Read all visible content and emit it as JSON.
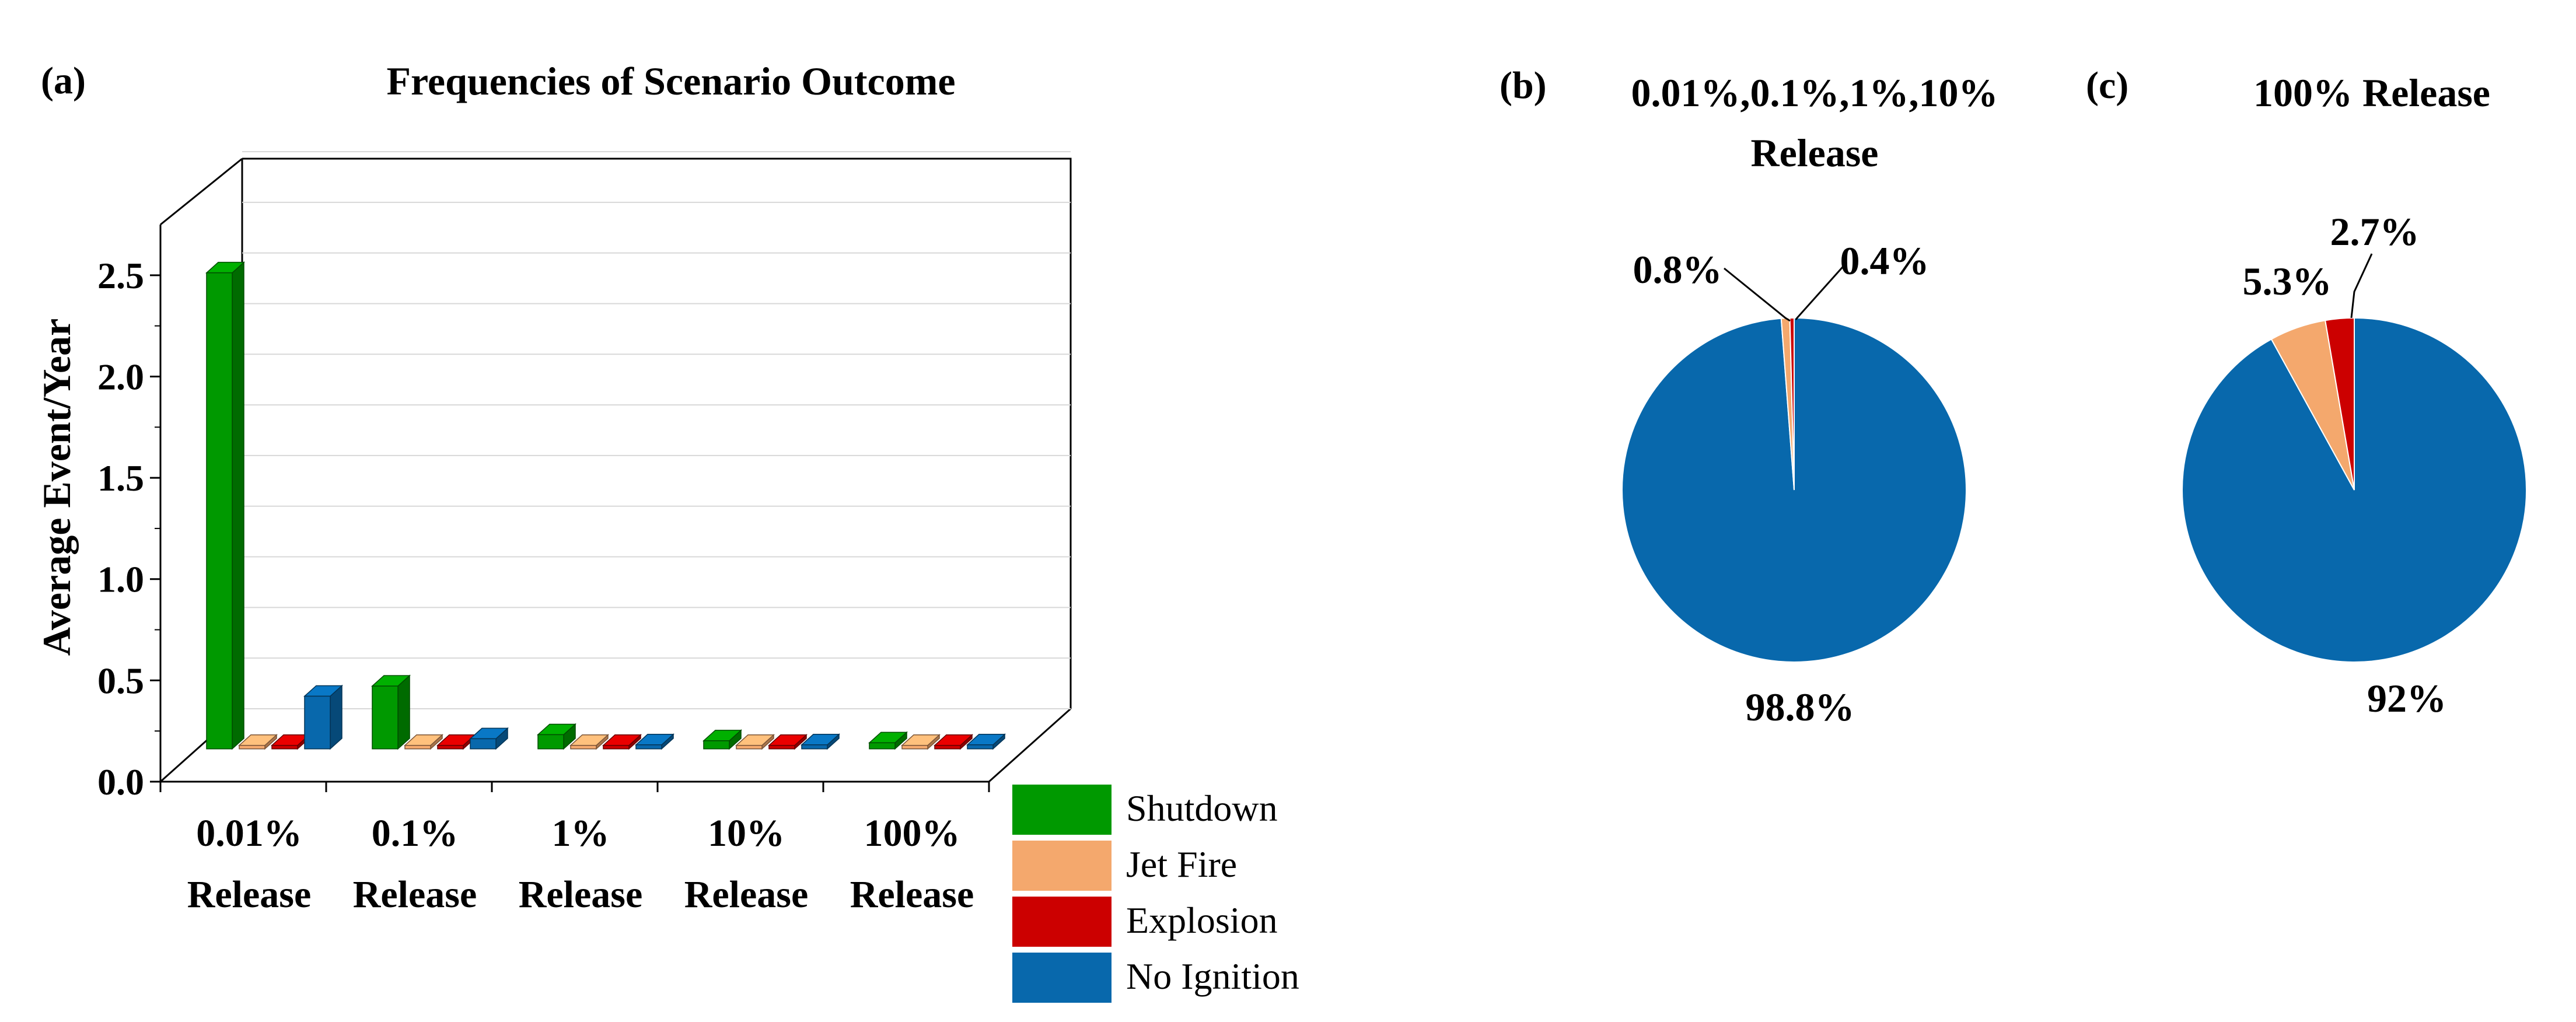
{
  "chart_data": [
    {
      "type": "bar",
      "panel_label": "(a)",
      "title": "Frequencies of Scenario Outcome",
      "xlabel": "",
      "ylabel": "Average Event/Year",
      "ylim": [
        0,
        2.75
      ],
      "yticks": [
        "0.0",
        "0.5",
        "1.0",
        "1.5",
        "2.0",
        "2.5"
      ],
      "categories": [
        {
          "line1": "0.01%",
          "line2": "Release"
        },
        {
          "line1": "0.1%",
          "line2": "Release"
        },
        {
          "line1": "1%",
          "line2": "Release"
        },
        {
          "line1": "10%",
          "line2": "Release"
        },
        {
          "line1": "100%",
          "line2": "Release"
        }
      ],
      "series": [
        {
          "name": "Shutdown",
          "color": "#009900",
          "values": [
            2.35,
            0.31,
            0.07,
            0.04,
            0.03
          ]
        },
        {
          "name": "Jet Fire",
          "color": "#f4a86d",
          "values": [
            0.01,
            0.005,
            0.003,
            0.002,
            0.002
          ]
        },
        {
          "name": "Explosion",
          "color": "#cc0000",
          "values": [
            0.01,
            0.005,
            0.003,
            0.002,
            0.002
          ]
        },
        {
          "name": "No Ignition",
          "color": "#0868ac",
          "values": [
            0.26,
            0.05,
            0.02,
            0.02,
            0.02
          ]
        }
      ],
      "legend_position": "bottom-right",
      "grid": true
    },
    {
      "type": "pie",
      "panel_label": "(b)",
      "title_lines": [
        "0.01%,0.1%,1%,10%",
        "Release"
      ],
      "slices": [
        {
          "name": "No Ignition",
          "value": 98.8,
          "label": "98.8%",
          "color": "#0868ac"
        },
        {
          "name": "Jet Fire",
          "value": 0.8,
          "label": "0.8%",
          "color": "#f4a86d"
        },
        {
          "name": "Explosion",
          "value": 0.4,
          "label": "0.4%",
          "color": "#cc0000"
        }
      ]
    },
    {
      "type": "pie",
      "panel_label": "(c)",
      "title_lines": [
        "100% Release"
      ],
      "slices": [
        {
          "name": "No Ignition",
          "value": 92,
          "label": "92%",
          "color": "#0868ac"
        },
        {
          "name": "Jet Fire",
          "value": 5.3,
          "label": "5.3%",
          "color": "#f4a86d"
        },
        {
          "name": "Explosion",
          "value": 2.7,
          "label": "2.7%",
          "color": "#cc0000"
        }
      ]
    }
  ]
}
